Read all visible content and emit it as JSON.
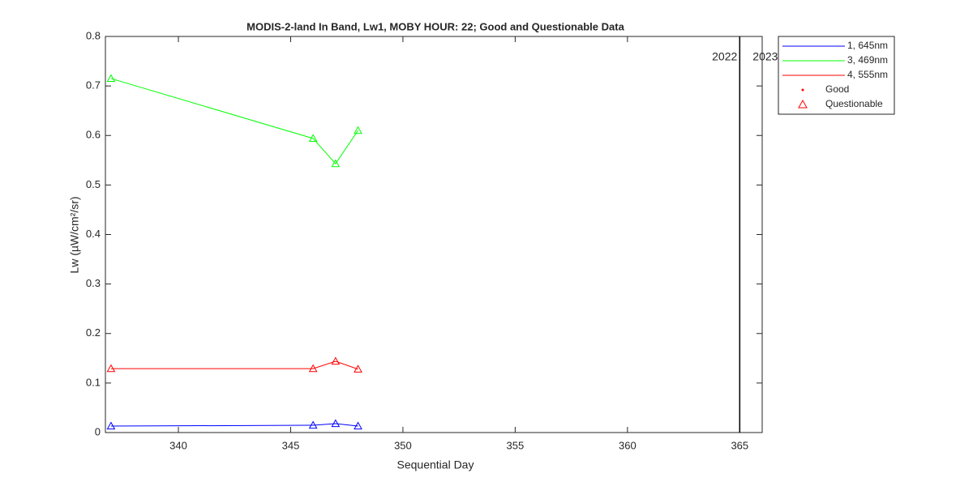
{
  "chart_data": {
    "type": "line",
    "title": "MODIS-2-land In Band,  Lw1, MOBY HOUR: 22;  Good and Questionable Data",
    "x_label": "Sequential Day",
    "y_label": "Lw (µW/cm²/sr)",
    "x": [
      337,
      346,
      347,
      348
    ],
    "series": [
      {
        "name": "1, 645nm",
        "color": "#0000ff",
        "values": [
          0.013,
          0.0147,
          0.018,
          0.013
        ]
      },
      {
        "name": "3, 469nm",
        "color": "#00ff00",
        "values": [
          0.715,
          0.594,
          0.543,
          0.61
        ]
      },
      {
        "name": "4, 555nm",
        "color": "#ff0000",
        "values": [
          0.129,
          0.129,
          0.144,
          0.128
        ]
      }
    ],
    "marker_legend": [
      {
        "label": "Good",
        "marker": "dot",
        "color": "#ff0000"
      },
      {
        "label": "Questionable",
        "marker": "triangle",
        "color": "#ff0000"
      }
    ],
    "series_marker": "triangle",
    "year_divider": 365,
    "year_labels": [
      "2022",
      "2023"
    ],
    "xlim": [
      336.75,
      366
    ],
    "ylim": [
      0,
      0.8
    ],
    "xticks": [
      340,
      345,
      350,
      355,
      360,
      365
    ],
    "yticks": [
      0,
      0.1,
      0.2,
      0.3,
      0.4,
      0.5,
      0.6,
      0.7,
      0.8
    ],
    "legend_position": "outside-top-right"
  }
}
